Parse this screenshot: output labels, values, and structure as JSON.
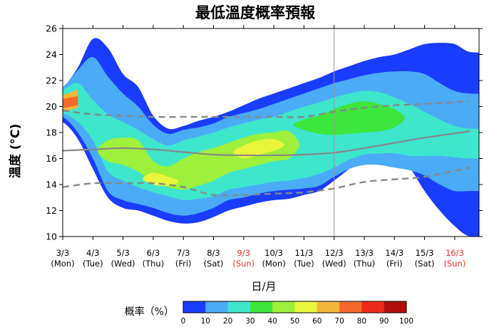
{
  "title": "最低溫度概率預報",
  "chart_data": {
    "type": "area",
    "title": "最低溫度概率預報",
    "ylabel": "溫度 (°C)",
    "xlabel": "日/月",
    "ylim": [
      10,
      26
    ],
    "yticks": [
      10,
      12,
      14,
      16,
      18,
      20,
      22,
      24,
      26
    ],
    "x_categories": [
      {
        "date": "3/3",
        "day": "(Mon)",
        "weekend": false
      },
      {
        "date": "4/3",
        "day": "(Tue)",
        "weekend": false
      },
      {
        "date": "5/3",
        "day": "(Wed)",
        "weekend": false
      },
      {
        "date": "6/3",
        "day": "(Thu)",
        "weekend": false
      },
      {
        "date": "7/3",
        "day": "(Fri)",
        "weekend": false
      },
      {
        "date": "8/3",
        "day": "(Sat)",
        "weekend": false
      },
      {
        "date": "9/3",
        "day": "(Sun)",
        "weekend": true
      },
      {
        "date": "10/3",
        "day": "(Mon)",
        "weekend": false
      },
      {
        "date": "11/3",
        "day": "(Tue)",
        "weekend": false
      },
      {
        "date": "12/3",
        "day": "(Wed)",
        "weekend": false
      },
      {
        "date": "13/3",
        "day": "(Thu)",
        "weekend": false
      },
      {
        "date": "14/3",
        "day": "(Fri)",
        "weekend": false
      },
      {
        "date": "15/3",
        "day": "(Sat)",
        "weekend": false
      },
      {
        "date": "16/3",
        "day": "(Sun)",
        "weekend": true
      }
    ],
    "x_positions": [
      0,
      0.5,
      1,
      1.5,
      2,
      2.5,
      3,
      3.5,
      4,
      4.5,
      5,
      5.5,
      6,
      6.5,
      7,
      7.5,
      8,
      8.5,
      9,
      9.5,
      10,
      10.5,
      11,
      11.5,
      12,
      12.5,
      13,
      13.5
    ],
    "divider_at": 9,
    "bands": [
      {
        "level": 10,
        "color": "#1a3cff",
        "upper": [
          21.5,
          23.0,
          25.2,
          24.5,
          22.5,
          21.5,
          19.3,
          18.3,
          18.5,
          18.9,
          19.2,
          19.6,
          20.1,
          20.6,
          21.0,
          21.4,
          21.8,
          22.2,
          22.7,
          23.1,
          23.5,
          23.8,
          24.0,
          24.4,
          24.8,
          24.9,
          24.8,
          24.2
        ],
        "lower": [
          18.8,
          17.5,
          15.2,
          13.0,
          12.2,
          12.0,
          11.6,
          11.2,
          11.0,
          11.1,
          11.5,
          12.0,
          12.3,
          12.6,
          12.8,
          12.9,
          13.2,
          13.5,
          14.3,
          15.2,
          16.0,
          16.3,
          16.2,
          15.3,
          13.5,
          12.0,
          10.8,
          10.0
        ]
      },
      {
        "level": 20,
        "color": "#4aabf7",
        "upper": [
          21.5,
          22.8,
          23.8,
          22.3,
          21.0,
          20.0,
          18.6,
          17.9,
          18.2,
          18.4,
          18.7,
          19.2,
          19.5,
          19.8,
          20.2,
          20.6,
          21.0,
          21.4,
          21.8,
          22.1,
          22.4,
          22.6,
          22.7,
          22.7,
          22.5,
          21.8,
          21.2,
          21.0
        ],
        "lower": [
          19.2,
          18.0,
          16.0,
          13.5,
          12.8,
          12.5,
          12.2,
          11.8,
          11.6,
          11.8,
          12.2,
          12.8,
          13.0,
          13.3,
          13.5,
          13.6,
          13.7,
          13.9,
          14.6,
          15.2,
          15.5,
          15.5,
          15.3,
          15.1,
          14.7,
          14.0,
          13.5,
          13.5
        ]
      },
      {
        "level": 30,
        "color": "#3ee6cc",
        "upper": [
          21.3,
          21.8,
          20.5,
          19.4,
          18.8,
          18.2,
          17.5,
          17.0,
          17.4,
          17.7,
          18.0,
          18.4,
          18.7,
          19.0,
          19.2,
          19.6,
          20.0,
          20.3,
          20.7,
          21.0,
          21.2,
          21.1,
          20.7,
          20.2,
          19.6,
          19.0,
          18.5,
          18.3
        ],
        "lower": [
          19.5,
          18.8,
          17.4,
          15.0,
          14.3,
          13.8,
          13.4,
          13.1,
          12.8,
          12.9,
          13.1,
          13.6,
          13.8,
          14.0,
          14.2,
          14.3,
          14.5,
          14.8,
          15.3,
          15.9,
          16.3,
          16.4,
          16.4,
          16.2,
          16.2,
          16.2,
          16.1,
          16.0
        ]
      },
      {
        "level": 40,
        "color": "#3ce63c",
        "upper": [
          null,
          null,
          null,
          null,
          null,
          null,
          null,
          null,
          null,
          null,
          null,
          null,
          null,
          null,
          null,
          null,
          19.0,
          19.3,
          19.8,
          20.2,
          20.4,
          20.2,
          19.8,
          null,
          null,
          null,
          null,
          null
        ],
        "lower": [
          null,
          null,
          null,
          null,
          null,
          null,
          null,
          null,
          null,
          null,
          null,
          null,
          null,
          null,
          null,
          null,
          18.2,
          17.9,
          17.8,
          17.9,
          18.0,
          18.1,
          18.4,
          null,
          null,
          null,
          null,
          null
        ]
      },
      {
        "level": 50,
        "color": "#9ef03a",
        "upper": [
          null,
          null,
          null,
          17.4,
          17.6,
          17.4,
          15.8,
          15.4,
          16.0,
          16.5,
          16.8,
          17.2,
          17.6,
          17.9,
          18.0,
          18.1,
          null,
          null,
          null,
          null,
          null,
          null,
          null,
          null,
          null,
          null,
          null,
          null
        ],
        "lower": [
          null,
          null,
          null,
          15.8,
          15.5,
          15.0,
          14.2,
          13.8,
          13.6,
          13.9,
          14.3,
          14.9,
          15.2,
          15.5,
          15.8,
          16.0,
          null,
          null,
          null,
          null,
          null,
          null,
          null,
          null,
          null,
          null,
          null,
          null
        ]
      },
      {
        "level": 60,
        "color": "#e8f53a",
        "upper": [
          null,
          null,
          null,
          null,
          null,
          null,
          14.9,
          14.6,
          null,
          null,
          null,
          null,
          17.0,
          17.4,
          17.5,
          null,
          null,
          null,
          null,
          null,
          null,
          null,
          null,
          null,
          null,
          null,
          null,
          null
        ],
        "lower": [
          null,
          null,
          null,
          null,
          null,
          null,
          14.0,
          13.9,
          null,
          null,
          null,
          null,
          16.0,
          16.3,
          16.6,
          null,
          null,
          null,
          null,
          null,
          null,
          null,
          null,
          null,
          null,
          null,
          null,
          null
        ]
      },
      {
        "level": 70,
        "color": "#f5b43a",
        "upper": [
          20.9,
          21.3,
          null,
          null,
          null,
          null,
          null,
          null,
          null,
          null,
          null,
          null,
          null,
          null,
          null,
          null,
          null,
          null,
          null,
          null,
          null,
          null,
          null,
          null,
          null,
          null,
          null,
          null
        ],
        "lower": [
          19.6,
          19.9,
          null,
          null,
          null,
          null,
          null,
          null,
          null,
          null,
          null,
          null,
          null,
          null,
          null,
          null,
          null,
          null,
          null,
          null,
          null,
          null,
          null,
          null,
          null,
          null,
          null,
          null
        ]
      },
      {
        "level": 80,
        "color": "#f56a2a",
        "upper": [
          20.6,
          20.8,
          null,
          null,
          null,
          null,
          null,
          null,
          null,
          null,
          null,
          null,
          null,
          null,
          null,
          null,
          null,
          null,
          null,
          null,
          null,
          null,
          null,
          null,
          null,
          null,
          null,
          null
        ],
        "lower": [
          19.9,
          20.1,
          null,
          null,
          null,
          null,
          null,
          null,
          null,
          null,
          null,
          null,
          null,
          null,
          null,
          null,
          null,
          null,
          null,
          null,
          null,
          null,
          null,
          null,
          null,
          null,
          null,
          null
        ]
      }
    ],
    "median": {
      "color": "#888888",
      "x": [
        0,
        1,
        2,
        3,
        4,
        5,
        6,
        7,
        8,
        9,
        10,
        11,
        12,
        13.5
      ],
      "y": [
        16.6,
        16.7,
        16.8,
        16.7,
        16.5,
        16.3,
        16.25,
        16.25,
        16.3,
        16.45,
        16.8,
        17.2,
        17.6,
        18.1
      ]
    },
    "dashed_upper": {
      "color": "#888888",
      "x": [
        0,
        1,
        2,
        3,
        4,
        5,
        6,
        7,
        8,
        9,
        10,
        11,
        12,
        13.5
      ],
      "y": [
        19.7,
        19.4,
        19.3,
        19.2,
        19.2,
        19.2,
        19.2,
        19.2,
        19.2,
        19.6,
        19.9,
        20.1,
        20.2,
        20.4
      ]
    },
    "dashed_lower": {
      "color": "#888888",
      "x": [
        0,
        1,
        2,
        3,
        4,
        5,
        6,
        7,
        8,
        9,
        10,
        11,
        12,
        13.5
      ],
      "y": [
        13.8,
        14.1,
        14.1,
        14.1,
        13.8,
        13.2,
        13.2,
        13.3,
        13.4,
        13.7,
        14.2,
        14.4,
        14.6,
        15.3
      ]
    },
    "colorbar": {
      "label": "概率（%）",
      "ticks": [
        "0",
        "10",
        "20",
        "30",
        "40",
        "50",
        "60",
        "70",
        "80",
        "90",
        "100"
      ],
      "colors": [
        "#1a3cff",
        "#4aabf7",
        "#3ee6cc",
        "#3ce63c",
        "#9ef03a",
        "#e8f53a",
        "#f5b43a",
        "#f56a2a",
        "#f02a1a",
        "#b0100c"
      ]
    }
  }
}
